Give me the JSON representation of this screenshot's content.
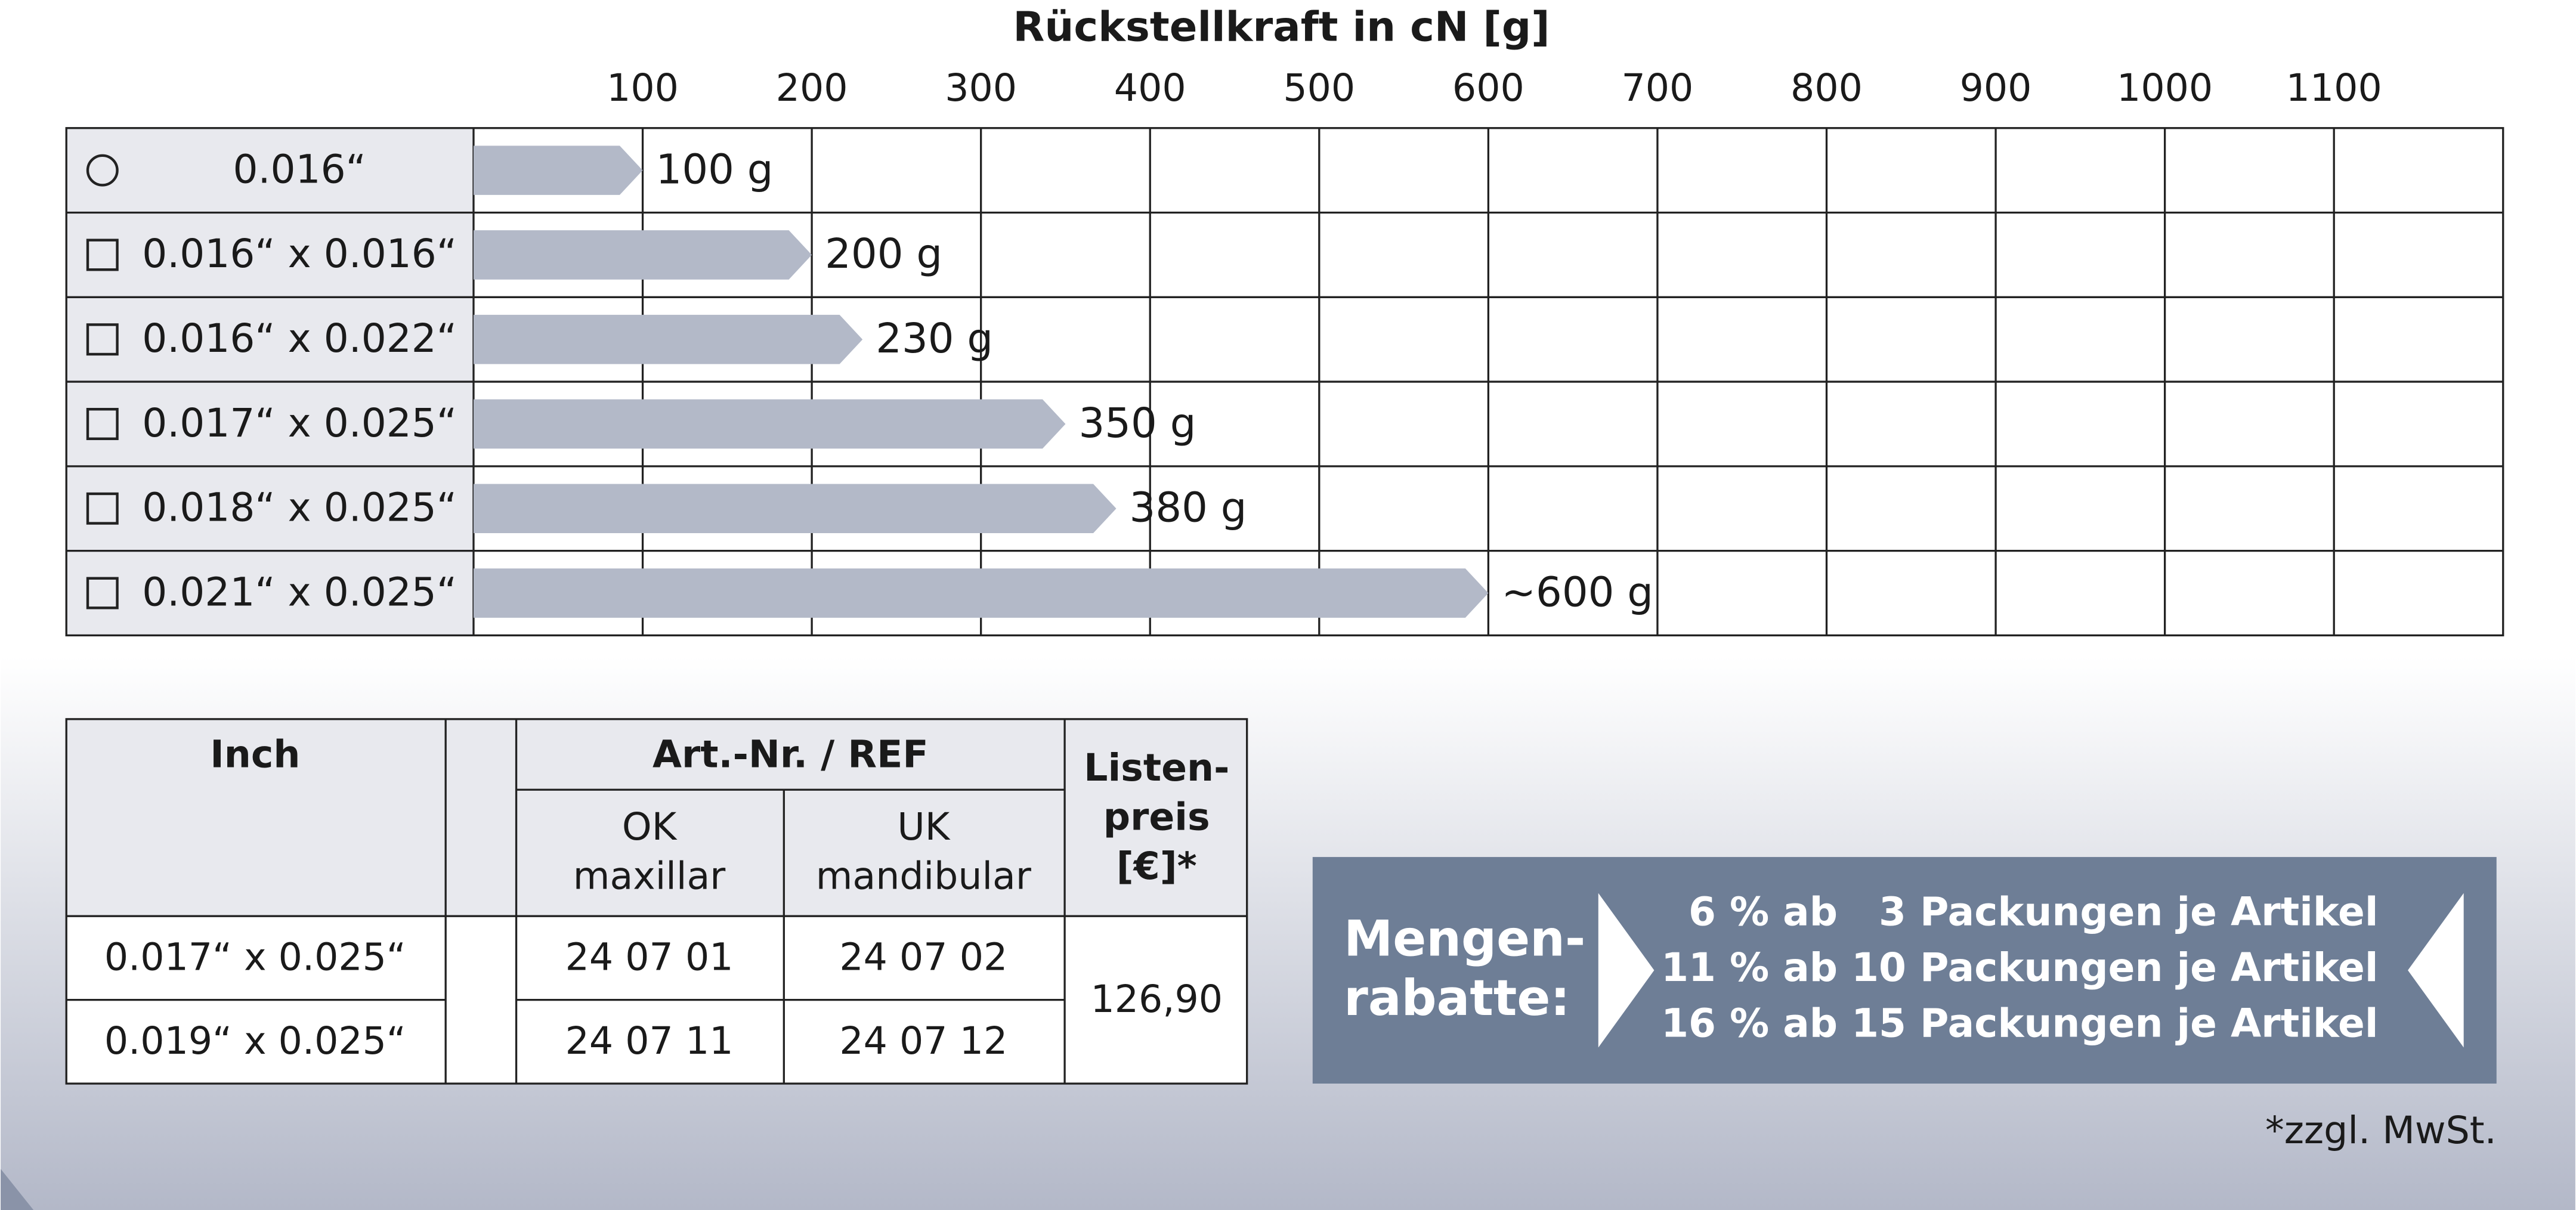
{
  "chart_data": {
    "type": "bar",
    "orientation": "horizontal",
    "title": "Rückstellkraft in cN [g]",
    "categories": [
      "0.016“",
      "0.016“ x 0.016“",
      "0.016“ x 0.022“",
      "0.017“ x 0.025“",
      "0.018“ x 0.025“",
      "0.021“ x 0.025“"
    ],
    "markers": [
      "circle",
      "square",
      "square",
      "square",
      "square",
      "square"
    ],
    "values": [
      100,
      200,
      230,
      350,
      380,
      600
    ],
    "value_labels": [
      "100 g",
      "200 g",
      "230 g",
      "350 g",
      "380 g",
      "~600 g"
    ],
    "color": "#b3b9c8",
    "xlim": [
      0,
      1200
    ],
    "xticks": [
      100,
      200,
      300,
      400,
      500,
      600,
      700,
      800,
      900,
      1000,
      1100
    ],
    "grid": true
  },
  "table": {
    "header": {
      "inch": "Inch",
      "art_nr": "Art.-Nr. / REF",
      "ok": [
        "OK",
        "maxillar"
      ],
      "uk": [
        "UK",
        "mandibular"
      ],
      "price": [
        "Listen-",
        "preis",
        "[€]*"
      ]
    },
    "rows": [
      [
        "0.017“ x 0.025“",
        "24 07 01",
        "24 07 02"
      ],
      [
        "0.019“ x 0.025“",
        "24 07 11",
        "24 07 12"
      ]
    ],
    "price": "126,90"
  },
  "discount": {
    "label": [
      "Mengen-",
      "rabatte:"
    ],
    "lines": [
      "6 % ab   3 Packungen je Artikel",
      "11 % ab 10 Packungen je Artikel",
      "16 % ab 15 Packungen je Artikel"
    ]
  },
  "footnote": "*zzgl. MwSt."
}
